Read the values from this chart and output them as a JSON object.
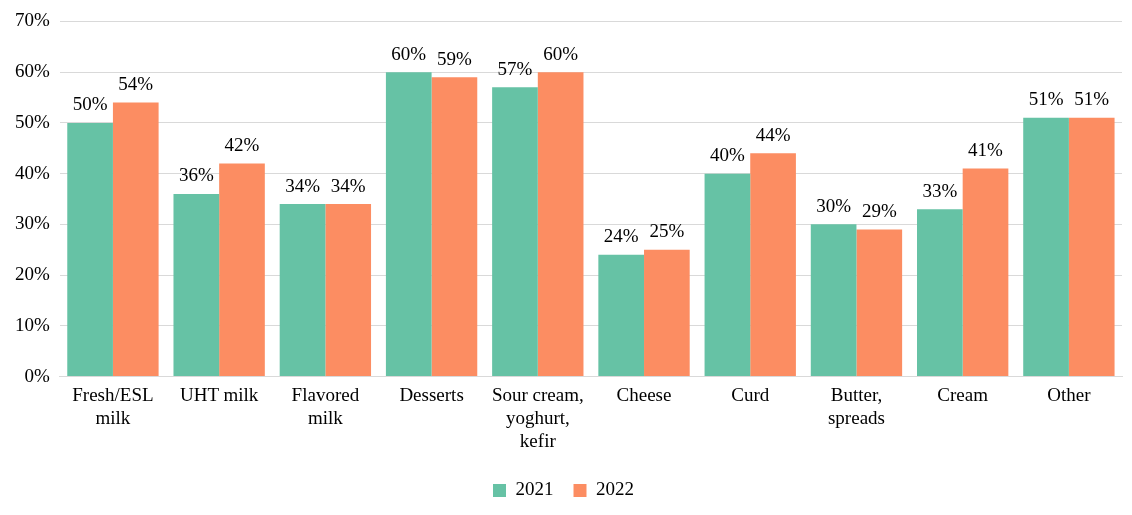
{
  "chart_data": {
    "type": "bar",
    "categories": [
      "Fresh/ESL milk",
      "UHT milk",
      "Flavored milk",
      "Desserts",
      "Sour cream, yoghurt, kefir",
      "Cheese",
      "Curd",
      "Butter, spreads",
      "Cream",
      "Other"
    ],
    "series": [
      {
        "name": "2021",
        "color": "#66c2a5",
        "values": [
          50,
          36,
          34,
          60,
          57,
          24,
          40,
          30,
          33,
          51
        ],
        "value_labels": [
          "50%",
          "36%",
          "34%",
          "60%",
          "57%",
          "24%",
          "40%",
          "30%",
          "33%",
          "51%"
        ]
      },
      {
        "name": "2022",
        "color": "#fc8d62",
        "values": [
          54,
          42,
          34,
          59,
          60,
          25,
          44,
          29,
          41,
          51
        ],
        "value_labels": [
          "54%",
          "42%",
          "34%",
          "59%",
          "60%",
          "25%",
          "44%",
          "29%",
          "41%",
          "51%"
        ]
      }
    ],
    "ylim": [
      0,
      70
    ],
    "yticks": [
      {
        "value": 0,
        "label": "0%"
      },
      {
        "value": 10,
        "label": "10%"
      },
      {
        "value": 20,
        "label": "20%"
      },
      {
        "value": 30,
        "label": "30%"
      },
      {
        "value": 40,
        "label": "40%"
      },
      {
        "value": 50,
        "label": "50%"
      },
      {
        "value": 60,
        "label": "60%"
      },
      {
        "value": 70,
        "label": "70%"
      }
    ],
    "grid": "y",
    "legend": "bottom"
  }
}
